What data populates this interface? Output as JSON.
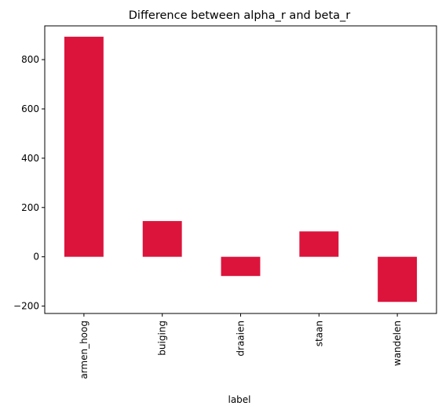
{
  "chart_data": {
    "type": "bar",
    "title": "Difference between alpha_r and beta_r",
    "xlabel": "label",
    "ylabel": "",
    "categories": [
      "armen_hoog",
      "buiging",
      "draaien",
      "staan",
      "wandelen"
    ],
    "values": [
      893,
      145,
      -78,
      103,
      -183
    ],
    "ylim": [
      -230,
      937
    ],
    "yticks": [
      -200,
      0,
      200,
      400,
      600,
      800
    ],
    "ytick_labels": [
      "−200",
      "0",
      "200",
      "400",
      "600",
      "800"
    ],
    "bar_color": "#dc143c",
    "grid": false,
    "legend": "none"
  }
}
